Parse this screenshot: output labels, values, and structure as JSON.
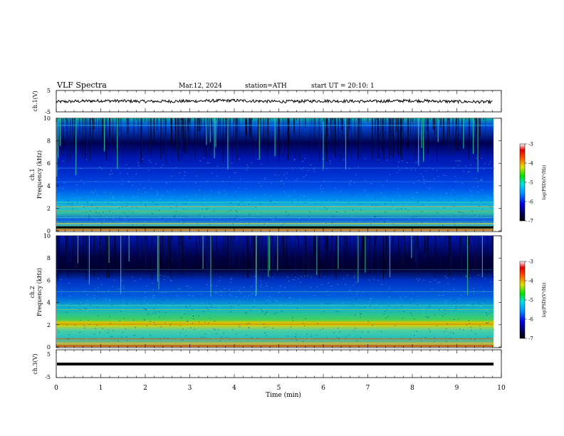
{
  "header": {
    "title": "VLF Spectra",
    "date": "Mar.12, 2024",
    "station": "station=ATH",
    "start": "start UT =  20:10: 1"
  },
  "chart_data": [
    {
      "type": "line",
      "panel": "ch1-waveform",
      "ylabel": "ch.1(V)",
      "ylim": [
        -5,
        5
      ],
      "yticks": [
        "5",
        "-5"
      ],
      "x": [
        0,
        1,
        2,
        3,
        4,
        5,
        6,
        7,
        8,
        9,
        9.8
      ],
      "values": [
        -0.3,
        0.2,
        -0.1,
        0.0,
        0.3,
        -0.2,
        0.1,
        -0.1,
        0.2,
        -0.2,
        -0.4
      ],
      "note_levels_approx": true
    },
    {
      "type": "heatmap",
      "panel": "ch1-spectrogram",
      "ylabel": "ch.1 Frequency (kHz)",
      "ylim": [
        0,
        10
      ],
      "yticks": [
        "0",
        "2",
        "4",
        "6",
        "8",
        "10"
      ],
      "colorbar": {
        "label": "log(PSD)(V²/Hz)",
        "range": [
          -7,
          -3
        ],
        "ticks": [
          "-3",
          "-4",
          "-5",
          "-6",
          "-7"
        ]
      },
      "profile_khz": [
        0,
        0.5,
        1,
        1.5,
        2,
        2.5,
        3,
        4,
        5,
        6,
        7,
        8,
        9,
        10
      ],
      "profile_logpsd": [
        -4.2,
        -4.6,
        -5.2,
        -5.4,
        -5.0,
        -5.4,
        -5.6,
        -5.9,
        -6.0,
        -6.0,
        -6.3,
        -5.4,
        -4.9,
        -4.8
      ]
    },
    {
      "type": "heatmap",
      "panel": "ch2-spectrogram",
      "ylabel": "ch.2 Frequency (kHz)",
      "ylim": [
        0,
        10
      ],
      "yticks": [
        "0",
        "2",
        "4",
        "6",
        "8",
        "10"
      ],
      "colorbar": {
        "label": "log(PSD)(V²/Hz)",
        "range": [
          -7,
          -3
        ],
        "ticks": [
          "-3",
          "-4",
          "-5",
          "-6",
          "-7"
        ]
      },
      "profile_khz": [
        0,
        0.5,
        1,
        1.5,
        2,
        2.5,
        3,
        3.5,
        4,
        5,
        6,
        7,
        8,
        9,
        10
      ],
      "profile_logpsd": [
        -3.8,
        -4.3,
        -5.0,
        -4.8,
        -4.1,
        -4.6,
        -5.0,
        -4.8,
        -5.3,
        -5.8,
        -6.2,
        -6.8,
        -6.7,
        -6.6,
        -6.5
      ]
    },
    {
      "type": "line",
      "panel": "ch3-waveform",
      "ylabel": "ch.3(V)",
      "ylim": [
        -5,
        5
      ],
      "yticks": [
        "5",
        "-5"
      ],
      "x": [
        0,
        9.8
      ],
      "values": [
        -2,
        -2
      ]
    }
  ],
  "xaxis": {
    "label": "Time (min)",
    "range": [
      0,
      10
    ],
    "ticks": [
      "0",
      "1",
      "2",
      "3",
      "4",
      "5",
      "6",
      "7",
      "8",
      "9",
      "10"
    ]
  }
}
